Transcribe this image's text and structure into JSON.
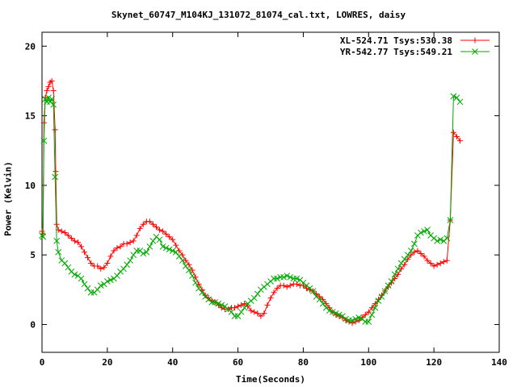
{
  "chart_data": {
    "type": "line",
    "title": "Skynet_60747_M104KJ_131072_81074_cal.txt, LOWRES, daisy",
    "xlabel": "Time(Seconds)",
    "ylabel": "Power (Kelvin)",
    "xlim": [
      0,
      140
    ],
    "ylim": [
      -2,
      21
    ],
    "xticks": [
      "0",
      "20",
      "40",
      "60",
      "80",
      "100",
      "120",
      "140"
    ],
    "yticks": [
      "0",
      "5",
      "10",
      "15",
      "20"
    ],
    "xtick_values": [
      0,
      20,
      40,
      60,
      80,
      100,
      120,
      140
    ],
    "ytick_values": [
      0,
      5,
      10,
      15,
      20
    ],
    "grid": false,
    "legend_position": "top-right",
    "series": [
      {
        "name": "XL-524.71 Tsys:530.38",
        "color": "#ff0000",
        "marker": "plus",
        "points": [
          [
            0,
            6.7
          ],
          [
            0.3,
            6.5
          ],
          [
            0.6,
            14.5
          ],
          [
            1,
            16.3
          ],
          [
            1.5,
            16.8
          ],
          [
            2,
            17.1
          ],
          [
            2.5,
            17.4
          ],
          [
            3,
            17.5
          ],
          [
            3.5,
            16.8
          ],
          [
            4,
            14
          ],
          [
            4.2,
            11
          ],
          [
            4.5,
            7.2
          ],
          [
            5,
            6.8
          ],
          [
            6,
            6.7
          ],
          [
            7,
            6.6
          ],
          [
            8,
            6.4
          ],
          [
            9,
            6.2
          ],
          [
            10,
            6.0
          ],
          [
            11,
            5.9
          ],
          [
            12,
            5.6
          ],
          [
            13,
            5.2
          ],
          [
            14,
            4.8
          ],
          [
            15,
            4.4
          ],
          [
            16,
            4.2
          ],
          [
            17,
            4.2
          ],
          [
            18,
            4.0
          ],
          [
            19,
            4.1
          ],
          [
            20,
            4.4
          ],
          [
            21,
            4.9
          ],
          [
            22,
            5.3
          ],
          [
            23,
            5.5
          ],
          [
            24,
            5.6
          ],
          [
            25,
            5.8
          ],
          [
            26,
            5.8
          ],
          [
            27,
            5.9
          ],
          [
            28,
            6.0
          ],
          [
            29,
            6.4
          ],
          [
            30,
            6.9
          ],
          [
            31,
            7.2
          ],
          [
            32,
            7.4
          ],
          [
            33,
            7.4
          ],
          [
            34,
            7.2
          ],
          [
            35,
            7.0
          ],
          [
            36,
            6.8
          ],
          [
            37,
            6.7
          ],
          [
            38,
            6.5
          ],
          [
            39,
            6.3
          ],
          [
            40,
            6.1
          ],
          [
            41,
            5.7
          ],
          [
            42,
            5.3
          ],
          [
            43,
            5.0
          ],
          [
            44,
            4.6
          ],
          [
            45,
            4.3
          ],
          [
            46,
            3.9
          ],
          [
            47,
            3.4
          ],
          [
            48,
            2.9
          ],
          [
            49,
            2.5
          ],
          [
            50,
            2.1
          ],
          [
            51,
            1.9
          ],
          [
            52,
            1.7
          ],
          [
            53,
            1.6
          ],
          [
            54,
            1.4
          ],
          [
            55,
            1.2
          ],
          [
            56,
            1.1
          ],
          [
            57,
            1.1
          ],
          [
            58,
            1.2
          ],
          [
            59,
            1.2
          ],
          [
            60,
            1.3
          ],
          [
            61,
            1.4
          ],
          [
            62,
            1.5
          ],
          [
            63,
            1.3
          ],
          [
            64,
            1.0
          ],
          [
            65,
            0.9
          ],
          [
            66,
            0.8
          ],
          [
            67,
            0.6
          ],
          [
            68,
            0.8
          ],
          [
            69,
            1.4
          ],
          [
            70,
            1.9
          ],
          [
            71,
            2.3
          ],
          [
            72,
            2.6
          ],
          [
            73,
            2.8
          ],
          [
            74,
            2.8
          ],
          [
            75,
            2.7
          ],
          [
            76,
            2.8
          ],
          [
            77,
            2.9
          ],
          [
            78,
            2.9
          ],
          [
            79,
            2.8
          ],
          [
            80,
            2.8
          ],
          [
            81,
            2.6
          ],
          [
            82,
            2.5
          ],
          [
            83,
            2.4
          ],
          [
            84,
            2.2
          ],
          [
            85,
            2.0
          ],
          [
            86,
            1.8
          ],
          [
            87,
            1.5
          ],
          [
            88,
            1.2
          ],
          [
            89,
            0.9
          ],
          [
            90,
            0.7
          ],
          [
            91,
            0.6
          ],
          [
            92,
            0.5
          ],
          [
            93,
            0.3
          ],
          [
            94,
            0.2
          ],
          [
            95,
            0.1
          ],
          [
            96,
            0.2
          ],
          [
            97,
            0.3
          ],
          [
            98,
            0.5
          ],
          [
            99,
            0.7
          ],
          [
            100,
            0.9
          ],
          [
            101,
            1.2
          ],
          [
            102,
            1.5
          ],
          [
            103,
            1.8
          ],
          [
            104,
            2.1
          ],
          [
            105,
            2.4
          ],
          [
            106,
            2.7
          ],
          [
            107,
            3.0
          ],
          [
            108,
            3.3
          ],
          [
            109,
            3.6
          ],
          [
            110,
            4.0
          ],
          [
            111,
            4.3
          ],
          [
            112,
            4.7
          ],
          [
            113,
            5.0
          ],
          [
            114,
            5.2
          ],
          [
            115,
            5.3
          ],
          [
            116,
            5.1
          ],
          [
            117,
            4.9
          ],
          [
            118,
            4.6
          ],
          [
            119,
            4.4
          ],
          [
            120,
            4.2
          ],
          [
            121,
            4.3
          ],
          [
            122,
            4.4
          ],
          [
            123,
            4.5
          ],
          [
            124,
            4.6
          ],
          [
            125,
            7.5
          ],
          [
            126,
            13.8
          ],
          [
            127,
            13.5
          ],
          [
            128,
            13.2
          ]
        ]
      },
      {
        "name": "YR-542.77 Tsys:549.21",
        "color": "#00aa00",
        "marker": "cross",
        "points": [
          [
            0,
            6.4
          ],
          [
            0.3,
            6.3
          ],
          [
            0.6,
            13.2
          ],
          [
            1,
            16.2
          ],
          [
            1.5,
            16.0
          ],
          [
            2,
            16.3
          ],
          [
            2.5,
            16.0
          ],
          [
            3,
            16.2
          ],
          [
            3.5,
            15.8
          ],
          [
            4,
            10.6
          ],
          [
            4.5,
            6.0
          ],
          [
            5,
            5.2
          ],
          [
            6,
            4.6
          ],
          [
            7,
            4.4
          ],
          [
            8,
            4.1
          ],
          [
            9,
            3.8
          ],
          [
            10,
            3.6
          ],
          [
            11,
            3.5
          ],
          [
            12,
            3.3
          ],
          [
            13,
            2.9
          ],
          [
            14,
            2.6
          ],
          [
            15,
            2.3
          ],
          [
            16,
            2.3
          ],
          [
            17,
            2.5
          ],
          [
            18,
            2.8
          ],
          [
            19,
            2.9
          ],
          [
            20,
            3.1
          ],
          [
            21,
            3.2
          ],
          [
            22,
            3.3
          ],
          [
            23,
            3.5
          ],
          [
            24,
            3.8
          ],
          [
            25,
            4.0
          ],
          [
            26,
            4.3
          ],
          [
            27,
            4.6
          ],
          [
            28,
            5.0
          ],
          [
            29,
            5.3
          ],
          [
            30,
            5.3
          ],
          [
            31,
            5.1
          ],
          [
            32,
            5.2
          ],
          [
            33,
            5.6
          ],
          [
            34,
            6.0
          ],
          [
            35,
            6.3
          ],
          [
            36,
            6.1
          ],
          [
            37,
            5.6
          ],
          [
            38,
            5.5
          ],
          [
            39,
            5.4
          ],
          [
            40,
            5.3
          ],
          [
            41,
            5.2
          ],
          [
            42,
            4.9
          ],
          [
            43,
            4.6
          ],
          [
            44,
            4.2
          ],
          [
            45,
            3.9
          ],
          [
            46,
            3.5
          ],
          [
            47,
            3.0
          ],
          [
            48,
            2.6
          ],
          [
            49,
            2.3
          ],
          [
            50,
            2.0
          ],
          [
            51,
            1.8
          ],
          [
            52,
            1.6
          ],
          [
            53,
            1.6
          ],
          [
            54,
            1.5
          ],
          [
            55,
            1.4
          ],
          [
            56,
            1.3
          ],
          [
            57,
            1.1
          ],
          [
            58,
            0.9
          ],
          [
            59,
            0.6
          ],
          [
            60,
            0.6
          ],
          [
            61,
            0.9
          ],
          [
            62,
            1.2
          ],
          [
            63,
            1.5
          ],
          [
            64,
            1.7
          ],
          [
            65,
            1.9
          ],
          [
            66,
            2.2
          ],
          [
            67,
            2.5
          ],
          [
            68,
            2.7
          ],
          [
            69,
            2.9
          ],
          [
            70,
            3.1
          ],
          [
            71,
            3.3
          ],
          [
            72,
            3.3
          ],
          [
            73,
            3.4
          ],
          [
            74,
            3.4
          ],
          [
            75,
            3.5
          ],
          [
            76,
            3.4
          ],
          [
            77,
            3.3
          ],
          [
            78,
            3.3
          ],
          [
            79,
            3.2
          ],
          [
            80,
            3.0
          ],
          [
            81,
            2.8
          ],
          [
            82,
            2.6
          ],
          [
            83,
            2.4
          ],
          [
            84,
            2.0
          ],
          [
            85,
            1.8
          ],
          [
            86,
            1.5
          ],
          [
            87,
            1.2
          ],
          [
            88,
            1.0
          ],
          [
            89,
            0.9
          ],
          [
            90,
            0.8
          ],
          [
            91,
            0.7
          ],
          [
            92,
            0.6
          ],
          [
            93,
            0.4
          ],
          [
            94,
            0.3
          ],
          [
            95,
            0.3
          ],
          [
            96,
            0.4
          ],
          [
            97,
            0.5
          ],
          [
            98,
            0.4
          ],
          [
            99,
            0.2
          ],
          [
            100,
            0.2
          ],
          [
            101,
            0.7
          ],
          [
            102,
            1.2
          ],
          [
            103,
            1.7
          ],
          [
            104,
            2.0
          ],
          [
            105,
            2.4
          ],
          [
            106,
            2.8
          ],
          [
            107,
            3.1
          ],
          [
            108,
            3.6
          ],
          [
            109,
            4.0
          ],
          [
            110,
            4.4
          ],
          [
            111,
            4.7
          ],
          [
            112,
            5.0
          ],
          [
            113,
            5.3
          ],
          [
            114,
            5.8
          ],
          [
            115,
            6.4
          ],
          [
            116,
            6.6
          ],
          [
            117,
            6.7
          ],
          [
            118,
            6.8
          ],
          [
            119,
            6.4
          ],
          [
            120,
            6.2
          ],
          [
            121,
            6.0
          ],
          [
            122,
            6.1
          ],
          [
            123,
            6.0
          ],
          [
            124,
            6.2
          ],
          [
            125,
            7.5
          ],
          [
            126,
            16.4
          ],
          [
            127,
            16.3
          ],
          [
            128,
            16.0
          ]
        ]
      }
    ]
  }
}
